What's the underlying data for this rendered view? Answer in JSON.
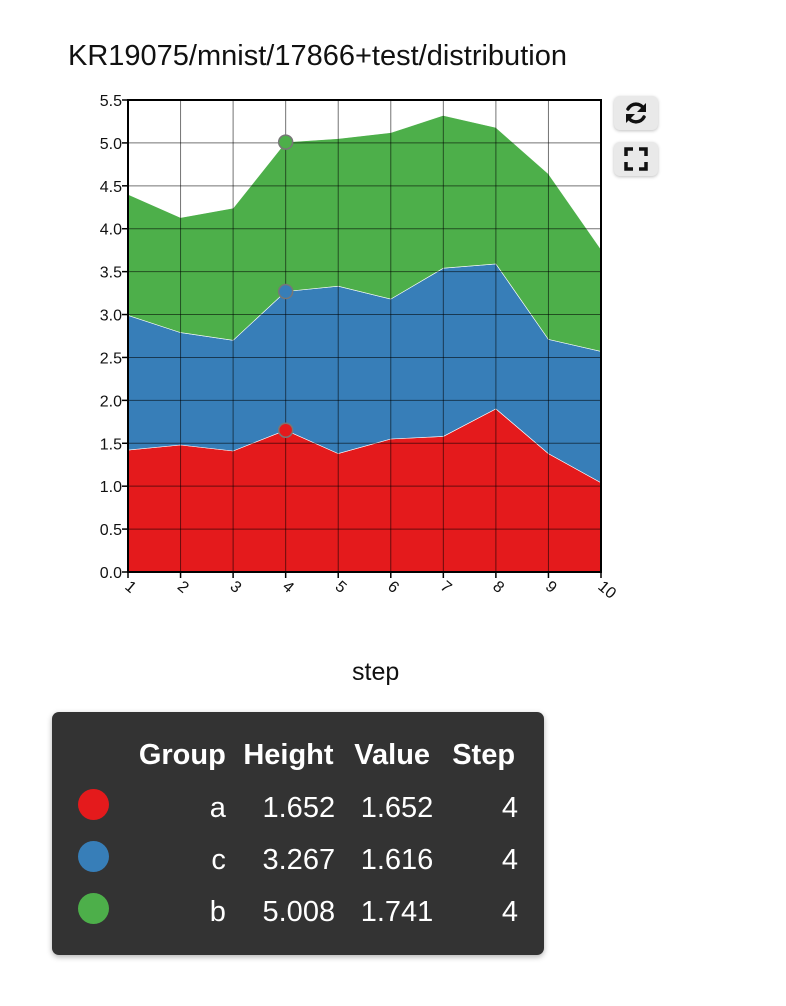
{
  "chart_data": {
    "type": "area",
    "stacked": true,
    "title": "KR19075/mnist/17866+test/distribution",
    "xlabel": "step",
    "ylabel": "",
    "x": [
      1,
      2,
      3,
      4,
      5,
      6,
      7,
      8,
      9,
      10
    ],
    "xlim": [
      1,
      10
    ],
    "ylim": [
      0,
      5.5
    ],
    "yticks": [
      "0.0",
      "0.5",
      "1.0",
      "1.5",
      "2.0",
      "2.5",
      "3.0",
      "3.5",
      "4.0",
      "4.5",
      "5.0",
      "5.5"
    ],
    "xticks": [
      "1",
      "2",
      "3",
      "4",
      "5",
      "6",
      "7",
      "8",
      "9",
      "10"
    ],
    "grid": true,
    "series": [
      {
        "name": "a",
        "color": "#e41a1c",
        "values": [
          1.42,
          1.48,
          1.41,
          1.652,
          1.38,
          1.55,
          1.58,
          1.9,
          1.38,
          1.04
        ]
      },
      {
        "name": "c",
        "color": "#377eb8",
        "values": [
          1.57,
          1.31,
          1.29,
          1.616,
          1.95,
          1.63,
          1.96,
          1.69,
          1.33,
          1.53
        ]
      },
      {
        "name": "b",
        "color": "#4daf4a",
        "values": [
          1.41,
          1.34,
          1.54,
          1.741,
          1.72,
          1.94,
          1.78,
          1.59,
          1.93,
          1.19
        ]
      }
    ],
    "highlight_step": 4
  },
  "toolbar": {
    "refresh_icon": "refresh-icon",
    "fullscreen_icon": "fullscreen-icon"
  },
  "tooltip": {
    "headers": {
      "group": "Group",
      "height": "Height",
      "value": "Value",
      "step": "Step"
    },
    "rows": [
      {
        "group": "a",
        "height": "1.652",
        "value": "1.652",
        "step": "4",
        "color": "#e41a1c"
      },
      {
        "group": "c",
        "height": "3.267",
        "value": "1.616",
        "step": "4",
        "color": "#377eb8"
      },
      {
        "group": "b",
        "height": "5.008",
        "value": "1.741",
        "step": "4",
        "color": "#4daf4a"
      }
    ]
  }
}
